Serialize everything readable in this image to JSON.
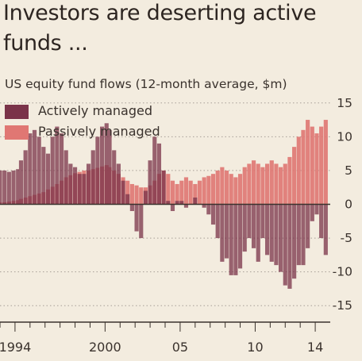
{
  "title": "Investors are deserting active funds ...",
  "subtitle": "US equity fund flows (12-month average, $m)",
  "colors": {
    "background": "#f3ecdf",
    "actively_managed": "#7a3349",
    "passively_managed": "#e07773",
    "grid": "#a79f97",
    "axis": "#3a322d"
  },
  "chart_data": {
    "type": "area",
    "title": "Investors are deserting active funds ...",
    "subtitle": "US equity fund flows (12-month average, $m)",
    "x_tick_labels": [
      "1994",
      "2000",
      "05",
      "10",
      "14"
    ],
    "x_tick_positions": [
      1994,
      2000,
      2005,
      2010,
      2014
    ],
    "y_tick_labels": [
      "15",
      "10",
      "5",
      "0",
      "-5",
      "-10",
      "-15"
    ],
    "y_tick_values": [
      15,
      10,
      5,
      0,
      -5,
      -10,
      -15
    ],
    "xlim": [
      1993,
      2015
    ],
    "ylim": [
      -16.5,
      16.5
    ],
    "grid": true,
    "legend_placement": "top-left",
    "series": [
      {
        "name": "Actively managed",
        "color": "#7a3349",
        "x": [
          1993.0,
          1993.3,
          1993.6,
          1993.9,
          1994.2,
          1994.4,
          1994.7,
          1995.0,
          1995.3,
          1995.6,
          1995.9,
          1996.2,
          1996.5,
          1996.8,
          1997.1,
          1997.4,
          1997.7,
          1998.0,
          1998.3,
          1998.6,
          1998.9,
          1999.2,
          1999.5,
          1999.8,
          2000.1,
          2000.3,
          2000.6,
          2000.9,
          2001.2,
          2001.5,
          2001.8,
          2002.1,
          2002.4,
          2002.7,
          2003.0,
          2003.3,
          2003.6,
          2003.9,
          2004.2,
          2004.5,
          2004.8,
          2005.1,
          2005.4,
          2005.7,
          2006.0,
          2006.3,
          2006.6,
          2006.9,
          2007.2,
          2007.5,
          2007.8,
          2008.1,
          2008.4,
          2008.7,
          2009.0,
          2009.3,
          2009.6,
          2009.9,
          2010.2,
          2010.5,
          2010.8,
          2011.1,
          2011.4,
          2011.7,
          2012.0,
          2012.3,
          2012.6,
          2012.9,
          2013.2,
          2013.5,
          2013.8,
          2014.1,
          2014.4,
          2014.7
        ],
        "values": [
          5,
          5,
          4.8,
          5,
          5.2,
          6.5,
          8,
          10.5,
          11,
          10,
          8.5,
          7.5,
          10,
          11.5,
          10.5,
          8,
          6,
          5.5,
          4.5,
          4.5,
          6,
          8,
          10,
          11.5,
          12,
          11,
          8,
          6,
          3.5,
          1.5,
          -1,
          -4,
          -5,
          2,
          6.5,
          10,
          9,
          5,
          0.5,
          -1,
          0.5,
          0.5,
          -0.5,
          0,
          1,
          0,
          -0.5,
          -1.5,
          -3,
          -5,
          -8.5,
          -8,
          -10.5,
          -10.5,
          -9.5,
          -7,
          -5,
          -6.5,
          -8.5,
          -5,
          -7.5,
          -8.5,
          -9,
          -10,
          -12,
          -12.5,
          -11,
          -9,
          -9,
          -6.5,
          -2.5,
          -1.5,
          -5,
          -7.5
        ]
      },
      {
        "name": "Passively managed",
        "color": "#e07773",
        "x": [
          1993.0,
          1993.3,
          1993.6,
          1993.9,
          1994.2,
          1994.4,
          1994.7,
          1995.0,
          1995.3,
          1995.6,
          1995.9,
          1996.2,
          1996.5,
          1996.8,
          1997.1,
          1997.4,
          1997.7,
          1998.0,
          1998.3,
          1998.6,
          1998.9,
          1999.2,
          1999.5,
          1999.8,
          2000.1,
          2000.3,
          2000.6,
          2000.9,
          2001.2,
          2001.5,
          2001.8,
          2002.1,
          2002.4,
          2002.7,
          2003.0,
          2003.3,
          2003.6,
          2003.9,
          2004.2,
          2004.5,
          2004.8,
          2005.1,
          2005.4,
          2005.7,
          2006.0,
          2006.3,
          2006.6,
          2006.9,
          2007.2,
          2007.5,
          2007.8,
          2008.1,
          2008.4,
          2008.7,
          2009.0,
          2009.3,
          2009.6,
          2009.9,
          2010.2,
          2010.5,
          2010.8,
          2011.1,
          2011.4,
          2011.7,
          2012.0,
          2012.3,
          2012.6,
          2012.9,
          2013.2,
          2013.5,
          2013.8,
          2014.1,
          2014.4,
          2014.7
        ],
        "values": [
          0.3,
          0.3,
          0.4,
          0.5,
          0.6,
          0.8,
          1.0,
          1.2,
          1.4,
          1.6,
          1.8,
          2.2,
          2.6,
          3.0,
          3.5,
          4.0,
          4.3,
          4.6,
          4.8,
          5.0,
          5.0,
          5.2,
          5.4,
          5.6,
          5.8,
          5.5,
          5.0,
          4.5,
          4.0,
          3.5,
          3.0,
          2.8,
          2.5,
          2.5,
          2.8,
          3.5,
          4.5,
          5.0,
          4.5,
          3.5,
          3.0,
          3.5,
          4.0,
          3.5,
          3.0,
          3.5,
          4.0,
          4.2,
          4.5,
          5.0,
          5.5,
          5.0,
          4.5,
          4.0,
          4.5,
          5.5,
          6.0,
          6.5,
          6.0,
          5.5,
          6.0,
          6.5,
          6.0,
          5.5,
          6.0,
          7.0,
          8.5,
          10.0,
          11.0,
          12.5,
          11.5,
          10.5,
          11.5,
          12.5
        ]
      }
    ]
  }
}
